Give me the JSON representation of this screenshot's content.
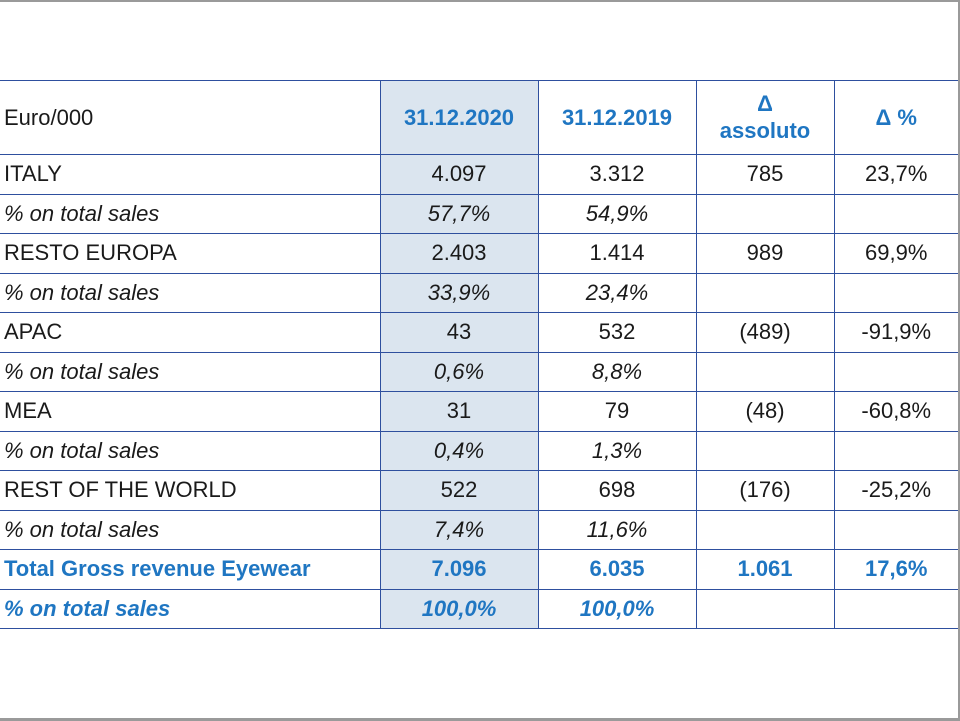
{
  "header": {
    "label": "Euro/000",
    "col_2020": "31.12.2020",
    "col_2019": "31.12.2019",
    "delta_symbol": "Δ",
    "delta_word": "assoluto",
    "delta_pct": "Δ %"
  },
  "rows": [
    {
      "label": "ITALY",
      "v2020": "4.097",
      "v2019": "3.312",
      "abs": "785",
      "pct": "23,7%"
    },
    {
      "label": "% on total sales",
      "v2020": "57,7%",
      "v2019": "54,9%",
      "abs": "",
      "pct": ""
    },
    {
      "label": "RESTO EUROPA",
      "v2020": "2.403",
      "v2019": "1.414",
      "abs": "989",
      "pct": "69,9%"
    },
    {
      "label": "% on total sales",
      "v2020": "33,9%",
      "v2019": "23,4%",
      "abs": "",
      "pct": ""
    },
    {
      "label": "APAC",
      "v2020": "43",
      "v2019": "532",
      "abs": "(489)",
      "pct": "-91,9%"
    },
    {
      "label": "% on total sales",
      "v2020": "0,6%",
      "v2019": "8,8%",
      "abs": "",
      "pct": ""
    },
    {
      "label": "MEA",
      "v2020": "31",
      "v2019": "79",
      "abs": "(48)",
      "pct": "-60,8%"
    },
    {
      "label": "% on total sales",
      "v2020": "0,4%",
      "v2019": "1,3%",
      "abs": "",
      "pct": ""
    },
    {
      "label": "REST OF THE WORLD",
      "v2020": "522",
      "v2019": "698",
      "abs": "(176)",
      "pct": "-25,2%"
    },
    {
      "label": "% on total sales",
      "v2020": "7,4%",
      "v2019": "11,6%",
      "abs": "",
      "pct": ""
    },
    {
      "label": "Total Gross revenue Eyewear",
      "v2020": "7.096",
      "v2019": "6.035",
      "abs": "1.061",
      "pct": "17,6%"
    },
    {
      "label": "% on total sales",
      "v2020": "100,0%",
      "v2019": "100,0%",
      "abs": "",
      "pct": ""
    }
  ]
}
